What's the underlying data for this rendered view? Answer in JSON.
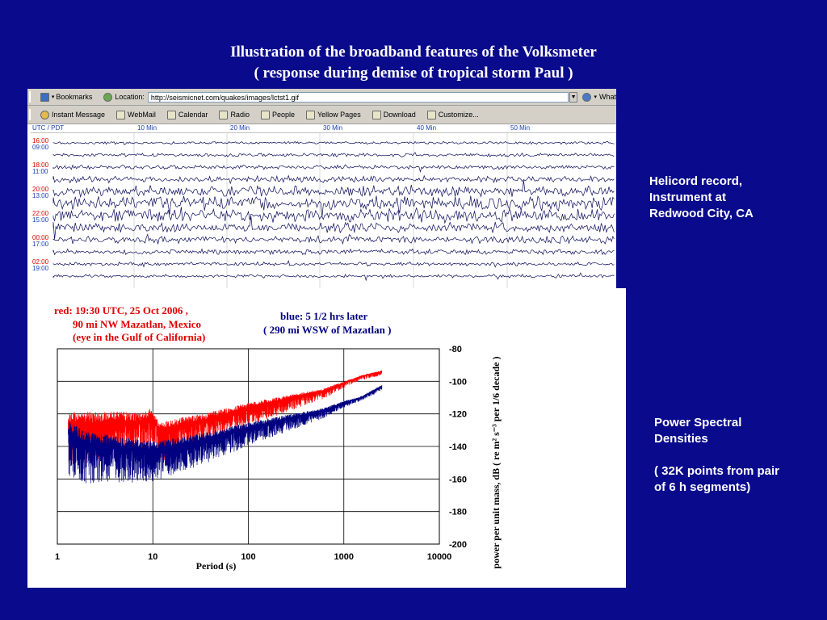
{
  "slide": {
    "title_line1": "Illustration of the broadband features of the Volksmeter",
    "title_line2": "( response during demise of tropical storm Paul )",
    "note_helicord": [
      "Helicord record,",
      "Instrument at",
      "Redwood City, CA"
    ],
    "note_psd": [
      "Power Spectral",
      "Densities",
      "",
      "( 32K points from pair",
      "of 6 h segments)"
    ]
  },
  "browser": {
    "toolbar1": {
      "bookmarks": "Bookmarks",
      "location_label": "Location:",
      "url": "http://seismicnet.com/quakes/images/lctst1.gif",
      "whats_related": "What"
    },
    "toolbar2": [
      "Instant Message",
      "WebMail",
      "Calendar",
      "Radio",
      "People",
      "Yellow Pages",
      "Download",
      "Customize..."
    ]
  },
  "helicord": {
    "header_zone": "UTC / PDT",
    "header_ticks": [
      "10 Min",
      "20 Min",
      "30 Min",
      "40 Min",
      "50 Min"
    ],
    "row_labels": [
      [
        "16:00",
        "09:00"
      ],
      [
        "18:00",
        "11:00"
      ],
      [
        "20:00",
        "13:00"
      ],
      [
        "22:00",
        "15:00"
      ],
      [
        "00:00",
        "17:00"
      ],
      [
        "02:00",
        "19:00"
      ]
    ]
  },
  "psd_legend": {
    "red_line1": "red:  19:30 UTC, 25 Oct 2006 ,",
    "red_line2": "90 mi NW Mazatlan, Mexico",
    "red_line3": "(eye in the Gulf of California)",
    "blue_line1": "blue:   5 1/2 hrs later",
    "blue_line2": "( 290 mi WSW of Mazatlan )"
  },
  "chart_data": {
    "type": "line",
    "xscale": "log",
    "xlim": [
      1,
      10000
    ],
    "ylim": [
      -200,
      -80
    ],
    "xlabel": "Period (s)",
    "ylabel": "power per unit mass, dB  ( re  m² s⁻³  per 1/6 decade )",
    "xticks": [
      "1",
      "10",
      "100",
      "1000",
      "10000"
    ],
    "yticks": [
      "-80",
      "-100",
      "-120",
      "-140",
      "-160",
      "-180",
      "-200"
    ],
    "grid": true,
    "series": [
      {
        "color": "#ff0000",
        "x": [
          1.3,
          2,
          4,
          8,
          9.5,
          12,
          20,
          40,
          80,
          150,
          300,
          600,
          1000,
          1500,
          2500
        ],
        "y": [
          -126,
          -126,
          -125,
          -125,
          -122,
          -131,
          -127,
          -123,
          -118,
          -114,
          -110,
          -106,
          -101,
          -97,
          -94
        ]
      },
      {
        "color": "#000080",
        "x": [
          1.3,
          2,
          4,
          8,
          12,
          20,
          40,
          80,
          150,
          300,
          600,
          1000,
          1500,
          2500
        ],
        "y": [
          -132,
          -138,
          -140,
          -142,
          -142,
          -139,
          -135,
          -130,
          -126,
          -122,
          -118,
          -113,
          -110,
          -103
        ]
      }
    ]
  }
}
